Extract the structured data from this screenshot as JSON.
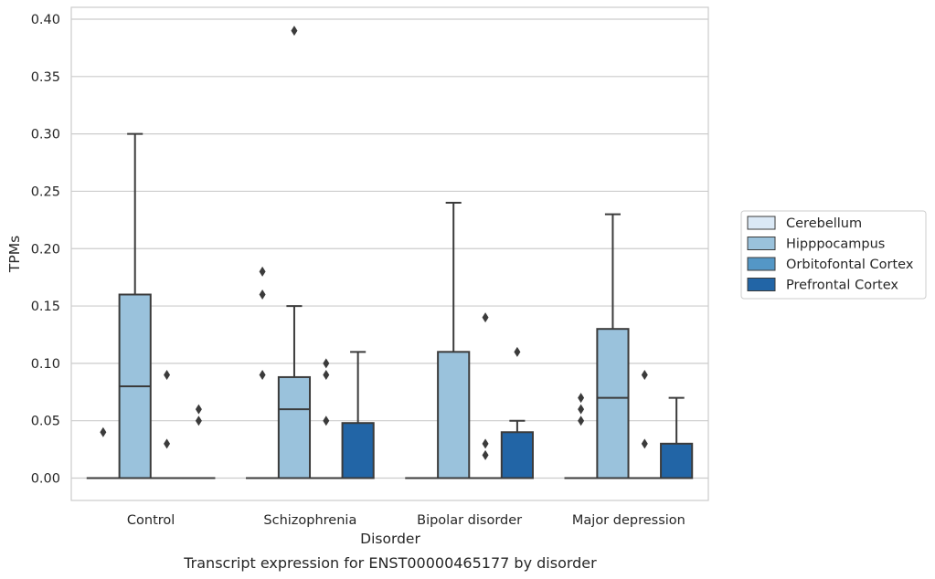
{
  "chart_data": {
    "type": "boxplot",
    "caption": "Transcript expression for ENST00000465177 by disorder",
    "xlabel": "Disorder",
    "ylabel": "TPMs",
    "ylim": [
      -0.02,
      0.41
    ],
    "yticks": [
      0.0,
      0.05,
      0.1,
      0.15,
      0.2,
      0.25,
      0.3,
      0.35,
      0.4
    ],
    "ytick_labels": [
      "0.00",
      "0.05",
      "0.10",
      "0.15",
      "0.20",
      "0.25",
      "0.30",
      "0.35",
      "0.40"
    ],
    "grid": "horizontal",
    "legend_placement": "right",
    "categories": [
      "Control",
      "Schizophrenia",
      "Bipolar disorder",
      "Major depression"
    ],
    "series": [
      {
        "name": "Cerebellum",
        "color": "#dbe9f6",
        "boxes": [
          {
            "q1": 0.0,
            "median": 0.0,
            "q3": 0.0,
            "whislo": 0.0,
            "whishi": 0.0,
            "fliers": [
              0.04
            ]
          },
          {
            "q1": 0.0,
            "median": 0.0,
            "q3": 0.0,
            "whislo": 0.0,
            "whishi": 0.0,
            "fliers": [
              0.09,
              0.16,
              0.18
            ]
          },
          {
            "q1": 0.0,
            "median": 0.0,
            "q3": 0.0,
            "whislo": 0.0,
            "whishi": 0.0,
            "fliers": []
          },
          {
            "q1": 0.0,
            "median": 0.0,
            "q3": 0.0,
            "whislo": 0.0,
            "whishi": 0.0,
            "fliers": [
              0.05,
              0.06,
              0.07
            ]
          }
        ]
      },
      {
        "name": "Hipppocampus",
        "color": "#9ac2dc",
        "boxes": [
          {
            "q1": 0.0,
            "median": 0.08,
            "q3": 0.16,
            "whislo": 0.0,
            "whishi": 0.3,
            "fliers": []
          },
          {
            "q1": 0.0,
            "median": 0.06,
            "q3": 0.088,
            "whislo": 0.0,
            "whishi": 0.15,
            "fliers": [
              0.39
            ]
          },
          {
            "q1": 0.0,
            "median": 0.0,
            "q3": 0.11,
            "whislo": 0.0,
            "whishi": 0.24,
            "fliers": []
          },
          {
            "q1": 0.0,
            "median": 0.07,
            "q3": 0.13,
            "whislo": 0.0,
            "whishi": 0.23,
            "fliers": []
          }
        ]
      },
      {
        "name": "Orbitofontal Cortex",
        "color": "#5497c6",
        "boxes": [
          {
            "q1": 0.0,
            "median": 0.0,
            "q3": 0.0,
            "whislo": 0.0,
            "whishi": 0.0,
            "fliers": [
              0.03,
              0.09
            ]
          },
          {
            "q1": 0.0,
            "median": 0.0,
            "q3": 0.0,
            "whislo": 0.0,
            "whishi": 0.0,
            "fliers": [
              0.05,
              0.09,
              0.1
            ]
          },
          {
            "q1": 0.0,
            "median": 0.0,
            "q3": 0.0,
            "whislo": 0.0,
            "whishi": 0.0,
            "fliers": [
              0.02,
              0.03,
              0.14
            ]
          },
          {
            "q1": 0.0,
            "median": 0.0,
            "q3": 0.0,
            "whislo": 0.0,
            "whishi": 0.0,
            "fliers": [
              0.03,
              0.09
            ]
          }
        ]
      },
      {
        "name": "Prefrontal Cortex",
        "color": "#2265a6",
        "boxes": [
          {
            "q1": 0.0,
            "median": 0.0,
            "q3": 0.0,
            "whislo": 0.0,
            "whishi": 0.0,
            "fliers": [
              0.05,
              0.06
            ]
          },
          {
            "q1": 0.0,
            "median": 0.0,
            "q3": 0.048,
            "whislo": 0.0,
            "whishi": 0.11,
            "fliers": []
          },
          {
            "q1": 0.0,
            "median": 0.0,
            "q3": 0.04,
            "whislo": 0.0,
            "whishi": 0.05,
            "fliers": [
              0.11
            ]
          },
          {
            "q1": 0.0,
            "median": 0.0,
            "q3": 0.03,
            "whislo": 0.0,
            "whishi": 0.07,
            "fliers": []
          }
        ]
      }
    ]
  }
}
